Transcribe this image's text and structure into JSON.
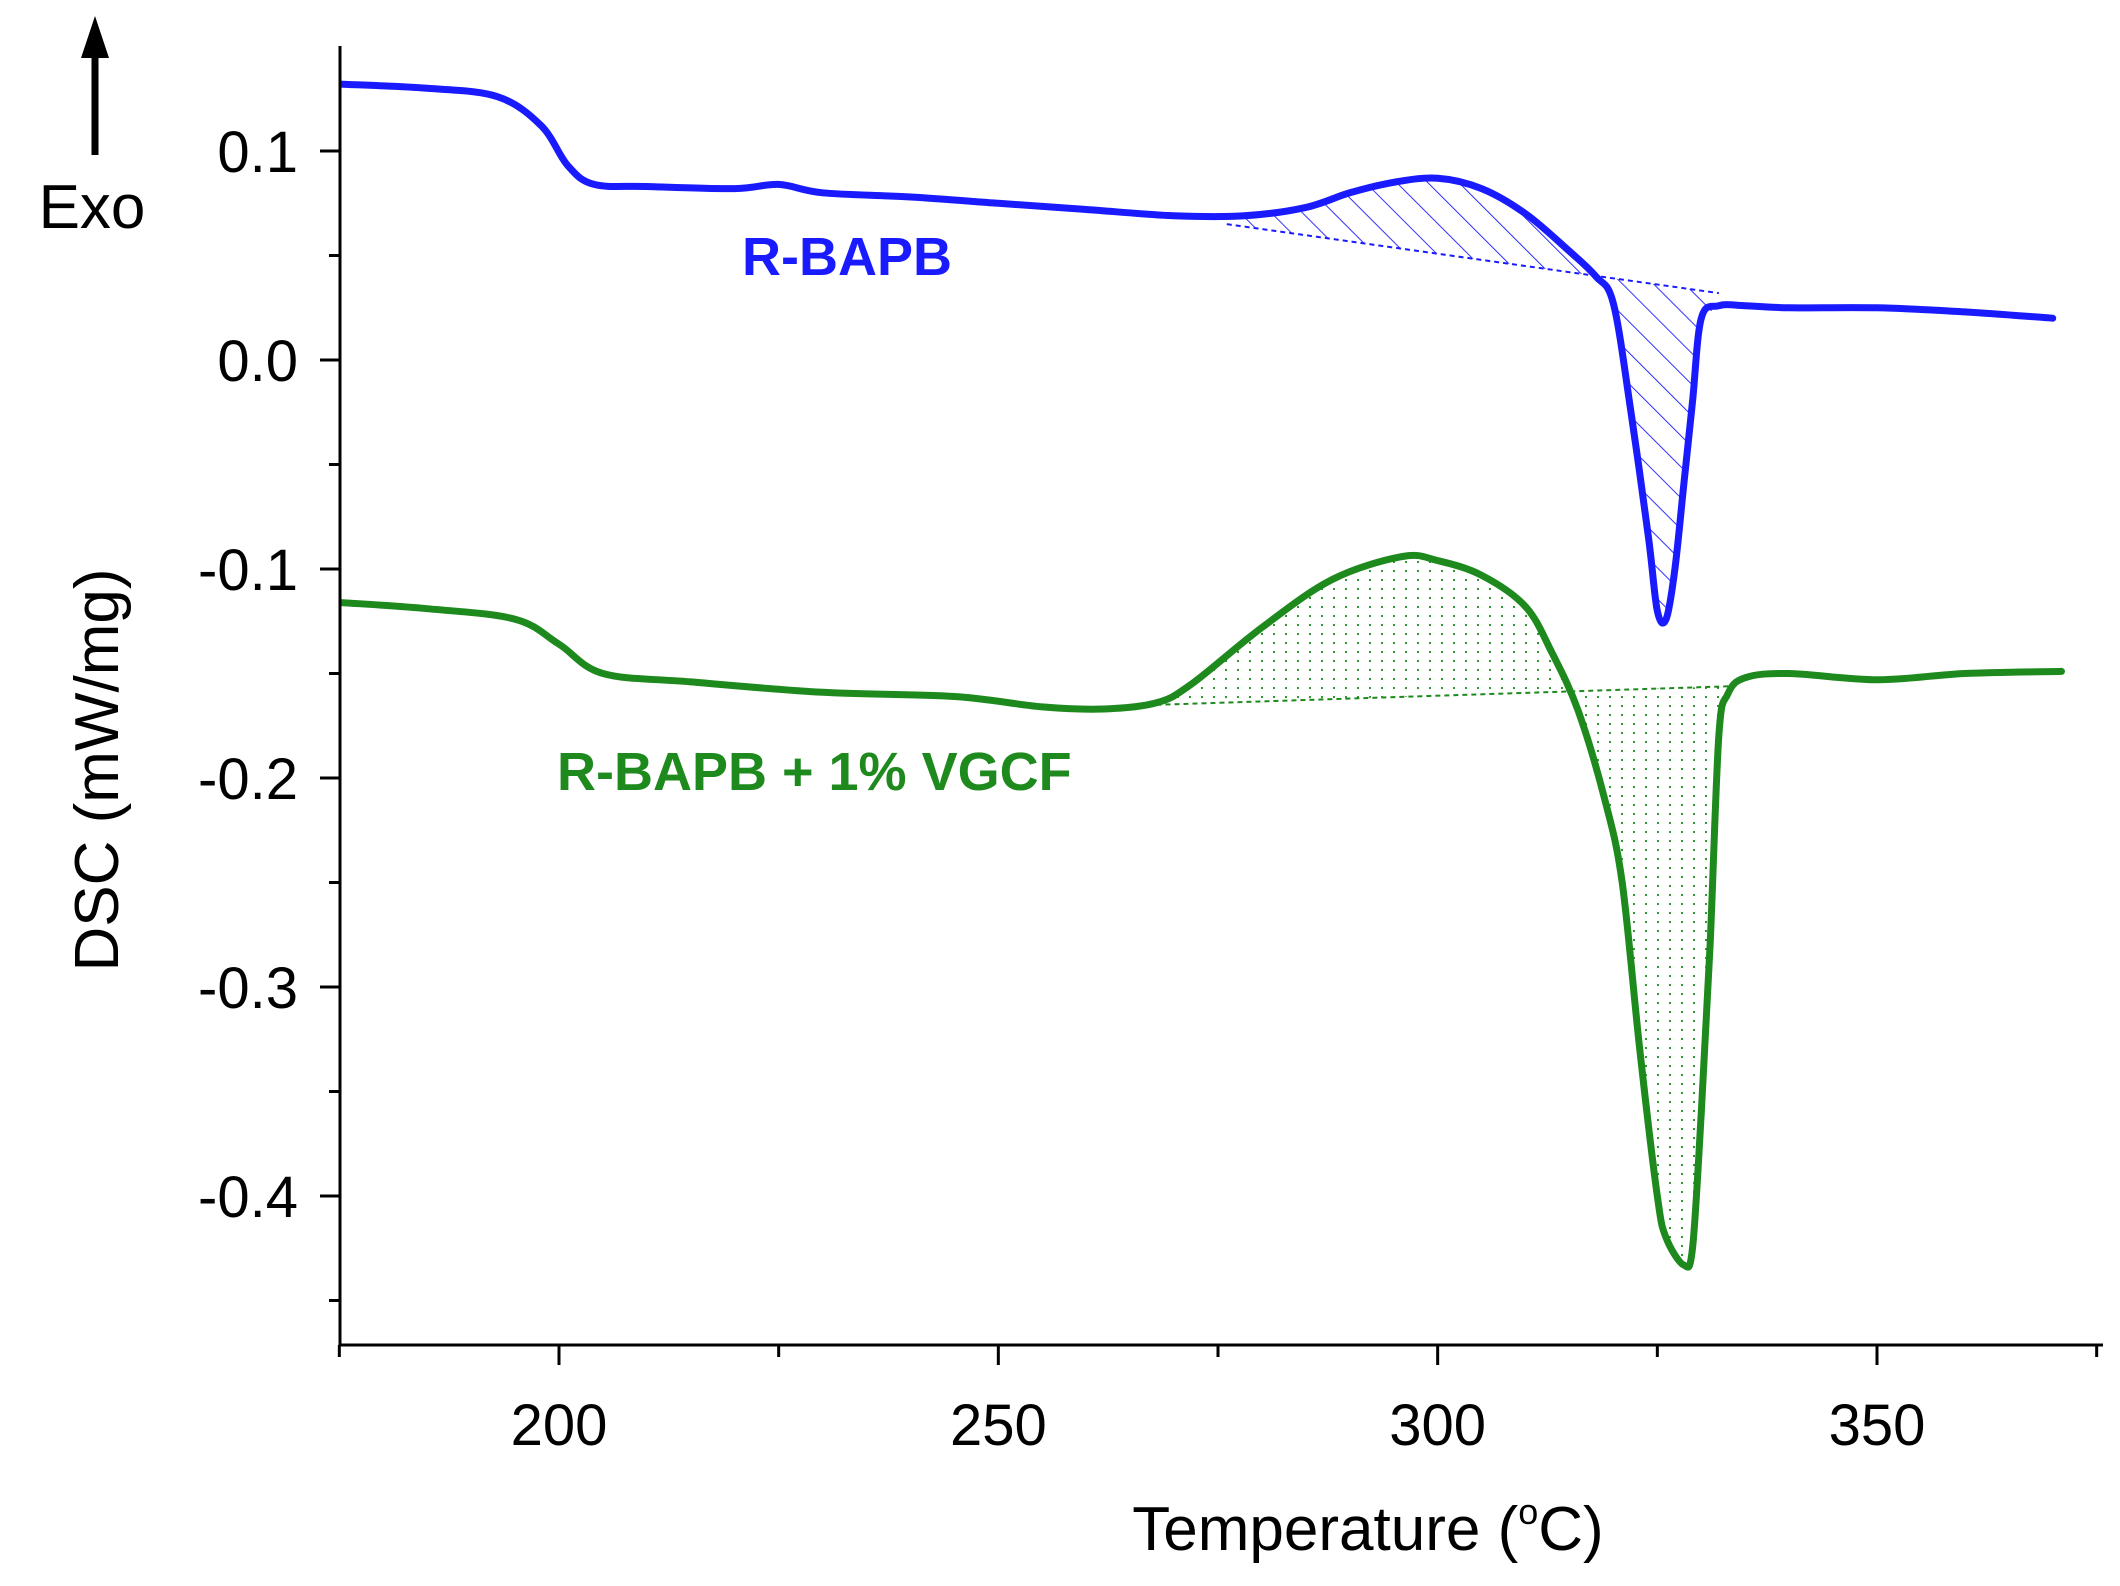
{
  "chart_data": {
    "type": "line",
    "title": "",
    "xlabel": "Temperature (°C)",
    "xlabel_text": "Temperature (",
    "xlabel_unit": "C)",
    "xlabel_degree": "o",
    "ylabel": "DSC (mW/mg)",
    "xlim": [
      175,
      375
    ],
    "ylim": [
      -0.47,
      0.15
    ],
    "xticks": [
      200,
      250,
      300,
      350
    ],
    "xtick_labels": [
      "200",
      "250",
      "300",
      "350"
    ],
    "yticks": [
      0.1,
      0.0,
      -0.1,
      -0.2,
      -0.3,
      -0.4
    ],
    "ytick_labels": [
      "0.1",
      "0.0",
      "-0.1",
      "-0.2",
      "-0.3",
      "-0.4"
    ],
    "annotation": {
      "text": "Exo",
      "arrow": "up"
    },
    "series": [
      {
        "name": "R-BAPB",
        "color": "#1a1aff",
        "x": [
          175,
          185,
          193,
          198,
          201,
          204,
          210,
          220,
          225,
          230,
          240,
          250,
          260,
          270,
          278,
          285,
          290,
          295,
          300,
          305,
          310,
          315,
          318,
          320,
          322,
          324,
          325,
          326,
          327,
          328,
          329,
          330,
          332,
          335,
          340,
          350,
          360,
          370
        ],
        "y": [
          0.132,
          0.13,
          0.126,
          0.112,
          0.093,
          0.084,
          0.083,
          0.082,
          0.084,
          0.08,
          0.078,
          0.075,
          0.072,
          0.069,
          0.069,
          0.073,
          0.08,
          0.085,
          0.087,
          0.082,
          0.07,
          0.052,
          0.04,
          0.027,
          -0.025,
          -0.085,
          -0.12,
          -0.124,
          -0.1,
          -0.06,
          -0.02,
          0.02,
          0.026,
          0.026,
          0.025,
          0.025,
          0.023,
          0.02
        ],
        "baseline": {
          "x": [
            276,
            332
          ],
          "y": [
            0.065,
            0.032
          ]
        },
        "peaks": [
          {
            "kind": "exothermic",
            "x": 300,
            "y": 0.087
          },
          {
            "kind": "endothermic",
            "x": 326,
            "y": -0.124
          }
        ]
      },
      {
        "name": "R-BAPB + 1% VGCF",
        "color": "#1e8a1e",
        "x": [
          175,
          185,
          195,
          200,
          205,
          215,
          230,
          245,
          255,
          262,
          268,
          272,
          280,
          288,
          296,
          300,
          305,
          310,
          313,
          316,
          319,
          321,
          323,
          325,
          326,
          328,
          329,
          330,
          331,
          332,
          333,
          335,
          340,
          350,
          360,
          371
        ],
        "y": [
          -0.116,
          -0.119,
          -0.124,
          -0.136,
          -0.15,
          -0.154,
          -0.159,
          -0.161,
          -0.166,
          -0.167,
          -0.164,
          -0.155,
          -0.128,
          -0.105,
          -0.094,
          -0.096,
          -0.103,
          -0.118,
          -0.14,
          -0.168,
          -0.21,
          -0.25,
          -0.33,
          -0.4,
          -0.42,
          -0.433,
          -0.425,
          -0.36,
          -0.28,
          -0.18,
          -0.16,
          -0.152,
          -0.15,
          -0.153,
          -0.15,
          -0.149
        ],
        "baseline": {
          "x": [
            268,
            334
          ],
          "y": [
            -0.165,
            -0.156
          ]
        },
        "peaks": [
          {
            "kind": "exothermic",
            "x": 296,
            "y": -0.094
          },
          {
            "kind": "endothermic",
            "x": 328,
            "y": -0.433
          }
        ]
      }
    ]
  }
}
